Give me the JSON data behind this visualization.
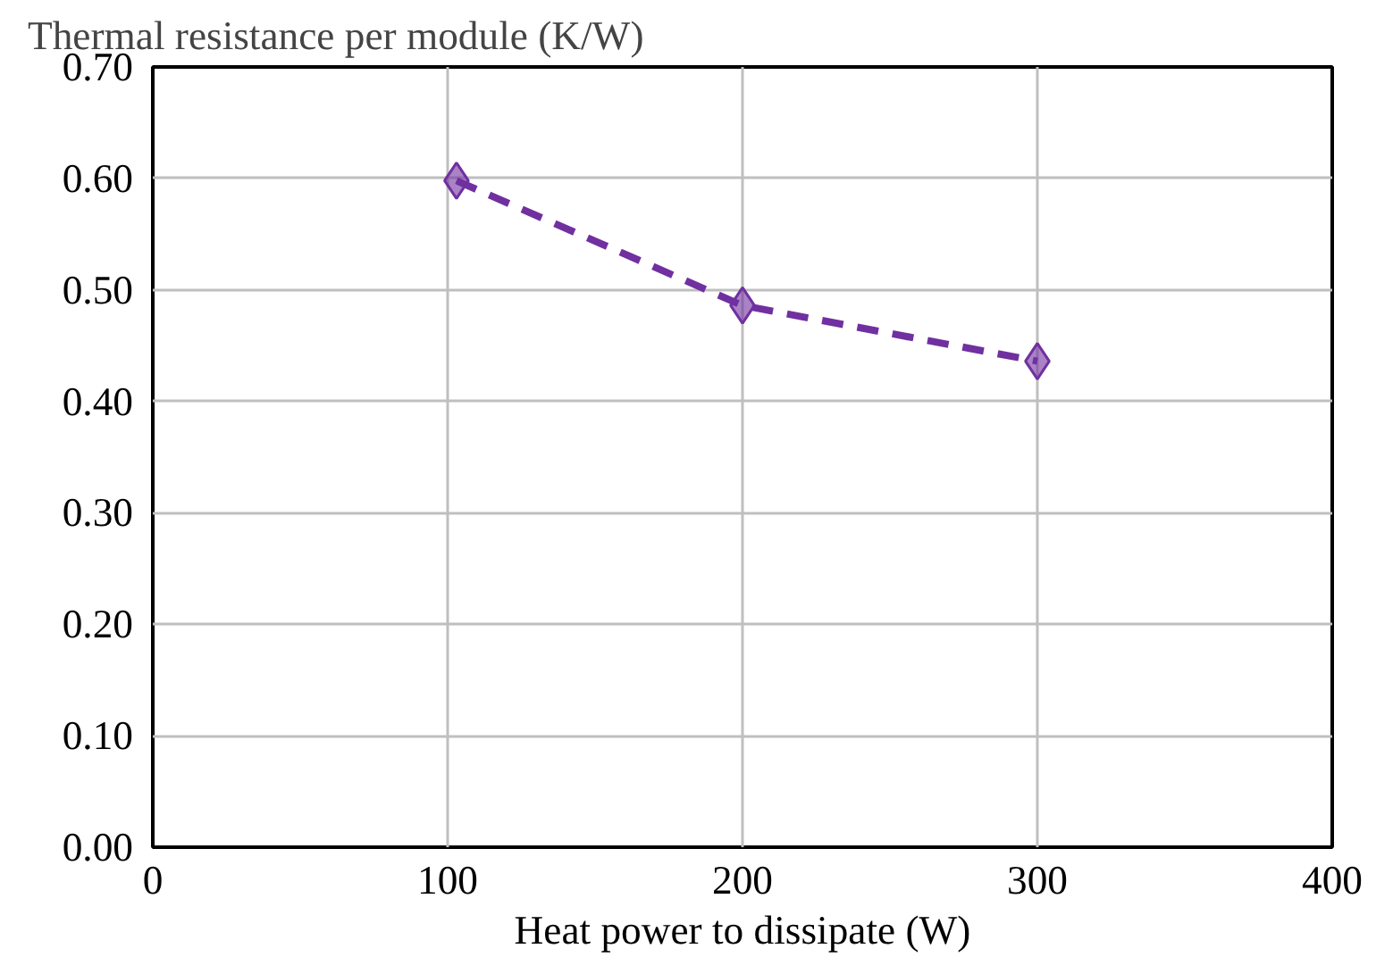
{
  "chart_data": {
    "type": "line",
    "ylabel": "Thermal resistance per module (K/W)",
    "xlabel": "Heat power to dissipate (W)",
    "x": [
      103,
      200,
      300
    ],
    "series": [
      {
        "color": "#7030a0",
        "values": [
          0.598,
          0.486,
          0.436
        ]
      }
    ],
    "xlim": [
      0,
      400
    ],
    "xticks": [
      0,
      100,
      200,
      300,
      400
    ],
    "ylim": [
      0,
      0.7
    ],
    "yticks": [
      {
        "value": 0,
        "label": "0.00"
      },
      {
        "value": 0.1,
        "label": "0.10"
      },
      {
        "value": 0.2,
        "label": "0.20"
      },
      {
        "value": 0.3,
        "label": "0.30"
      },
      {
        "value": 0.4,
        "label": "0.40"
      },
      {
        "value": 0.5,
        "label": "0.50"
      },
      {
        "value": 0.6,
        "label": "0.60"
      },
      {
        "value": 0.7,
        "label": "0.70"
      }
    ],
    "grid": true,
    "marker": "diamond",
    "line_style": "dashed"
  }
}
